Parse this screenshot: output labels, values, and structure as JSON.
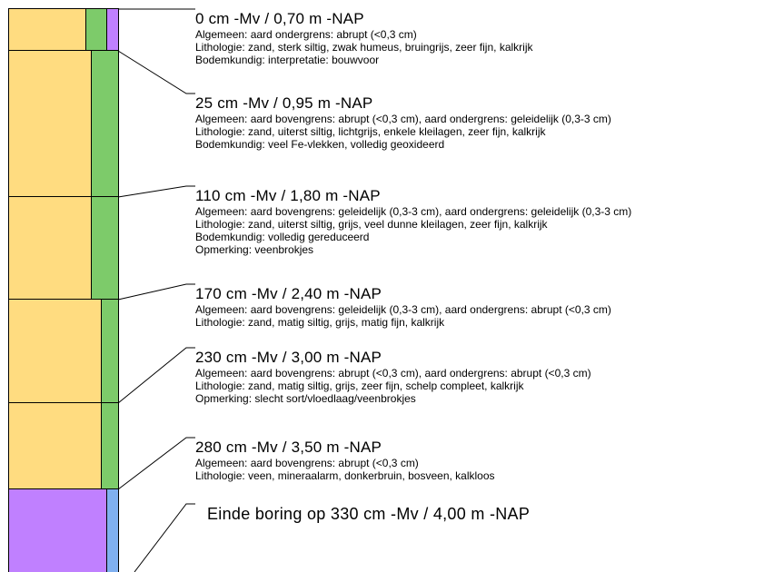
{
  "colors": {
    "zand": "#FFDC80",
    "veen": "#C080FF",
    "kalkrijk": "#7DCB6A",
    "kalkloos": "#80B0F0",
    "border": "#000000"
  },
  "layers": [
    {
      "depth_label": "0 cm -Mv / 0,70 m -NAP",
      "lines": [
        "Algemeen: aard ondergrens: abrupt (<0,3 cm)",
        "Lithologie: zand, sterk siltig, zwak humeus, bruingrijs, zeer fijn, kalkrijk",
        "Bodemkundig: interpretatie: bouwvoor"
      ]
    },
    {
      "depth_label": "25 cm -Mv / 0,95 m -NAP",
      "lines": [
        "Algemeen: aard bovengrens: abrupt (<0,3 cm), aard ondergrens: geleidelijk (0,3-3 cm)",
        "Lithologie: zand, uiterst siltig, lichtgrijs, enkele kleilagen, zeer fijn, kalkrijk",
        "Bodemkundig: veel Fe-vlekken, volledig geoxideerd"
      ]
    },
    {
      "depth_label": "110 cm -Mv / 1,80 m -NAP",
      "lines": [
        "Algemeen: aard bovengrens: geleidelijk (0,3-3 cm), aard ondergrens: geleidelijk (0,3-3 cm)",
        "Lithologie: zand, uiterst siltig, grijs, veel dunne kleilagen, zeer fijn, kalkrijk",
        "Bodemkundig: volledig gereduceerd",
        "Opmerking: veenbrokjes"
      ]
    },
    {
      "depth_label": "170 cm -Mv / 2,40 m -NAP",
      "lines": [
        "Algemeen: aard bovengrens: geleidelijk (0,3-3 cm), aard ondergrens: abrupt (<0,3 cm)",
        "Lithologie: zand, matig siltig, grijs, matig fijn, kalkrijk"
      ]
    },
    {
      "depth_label": "230 cm -Mv / 3,00 m -NAP",
      "lines": [
        "Algemeen: aard bovengrens: abrupt (<0,3 cm), aard ondergrens: abrupt (<0,3 cm)",
        "Lithologie: zand, matig siltig, grijs, zeer fijn, schelp compleet, kalkrijk",
        "Opmerking: slecht sort/vloedlaag/veenbrokjes"
      ]
    },
    {
      "depth_label": "280 cm -Mv / 3,50 m -NAP",
      "lines": [
        "Algemeen: aard bovengrens: abrupt (<0,3 cm)",
        "Lithologie: veen, mineraalarm, donkerbruin, bosveen, kalkloos"
      ]
    }
  ],
  "end_label": "Einde boring op 330 cm -Mv / 4,00 m -NAP"
}
